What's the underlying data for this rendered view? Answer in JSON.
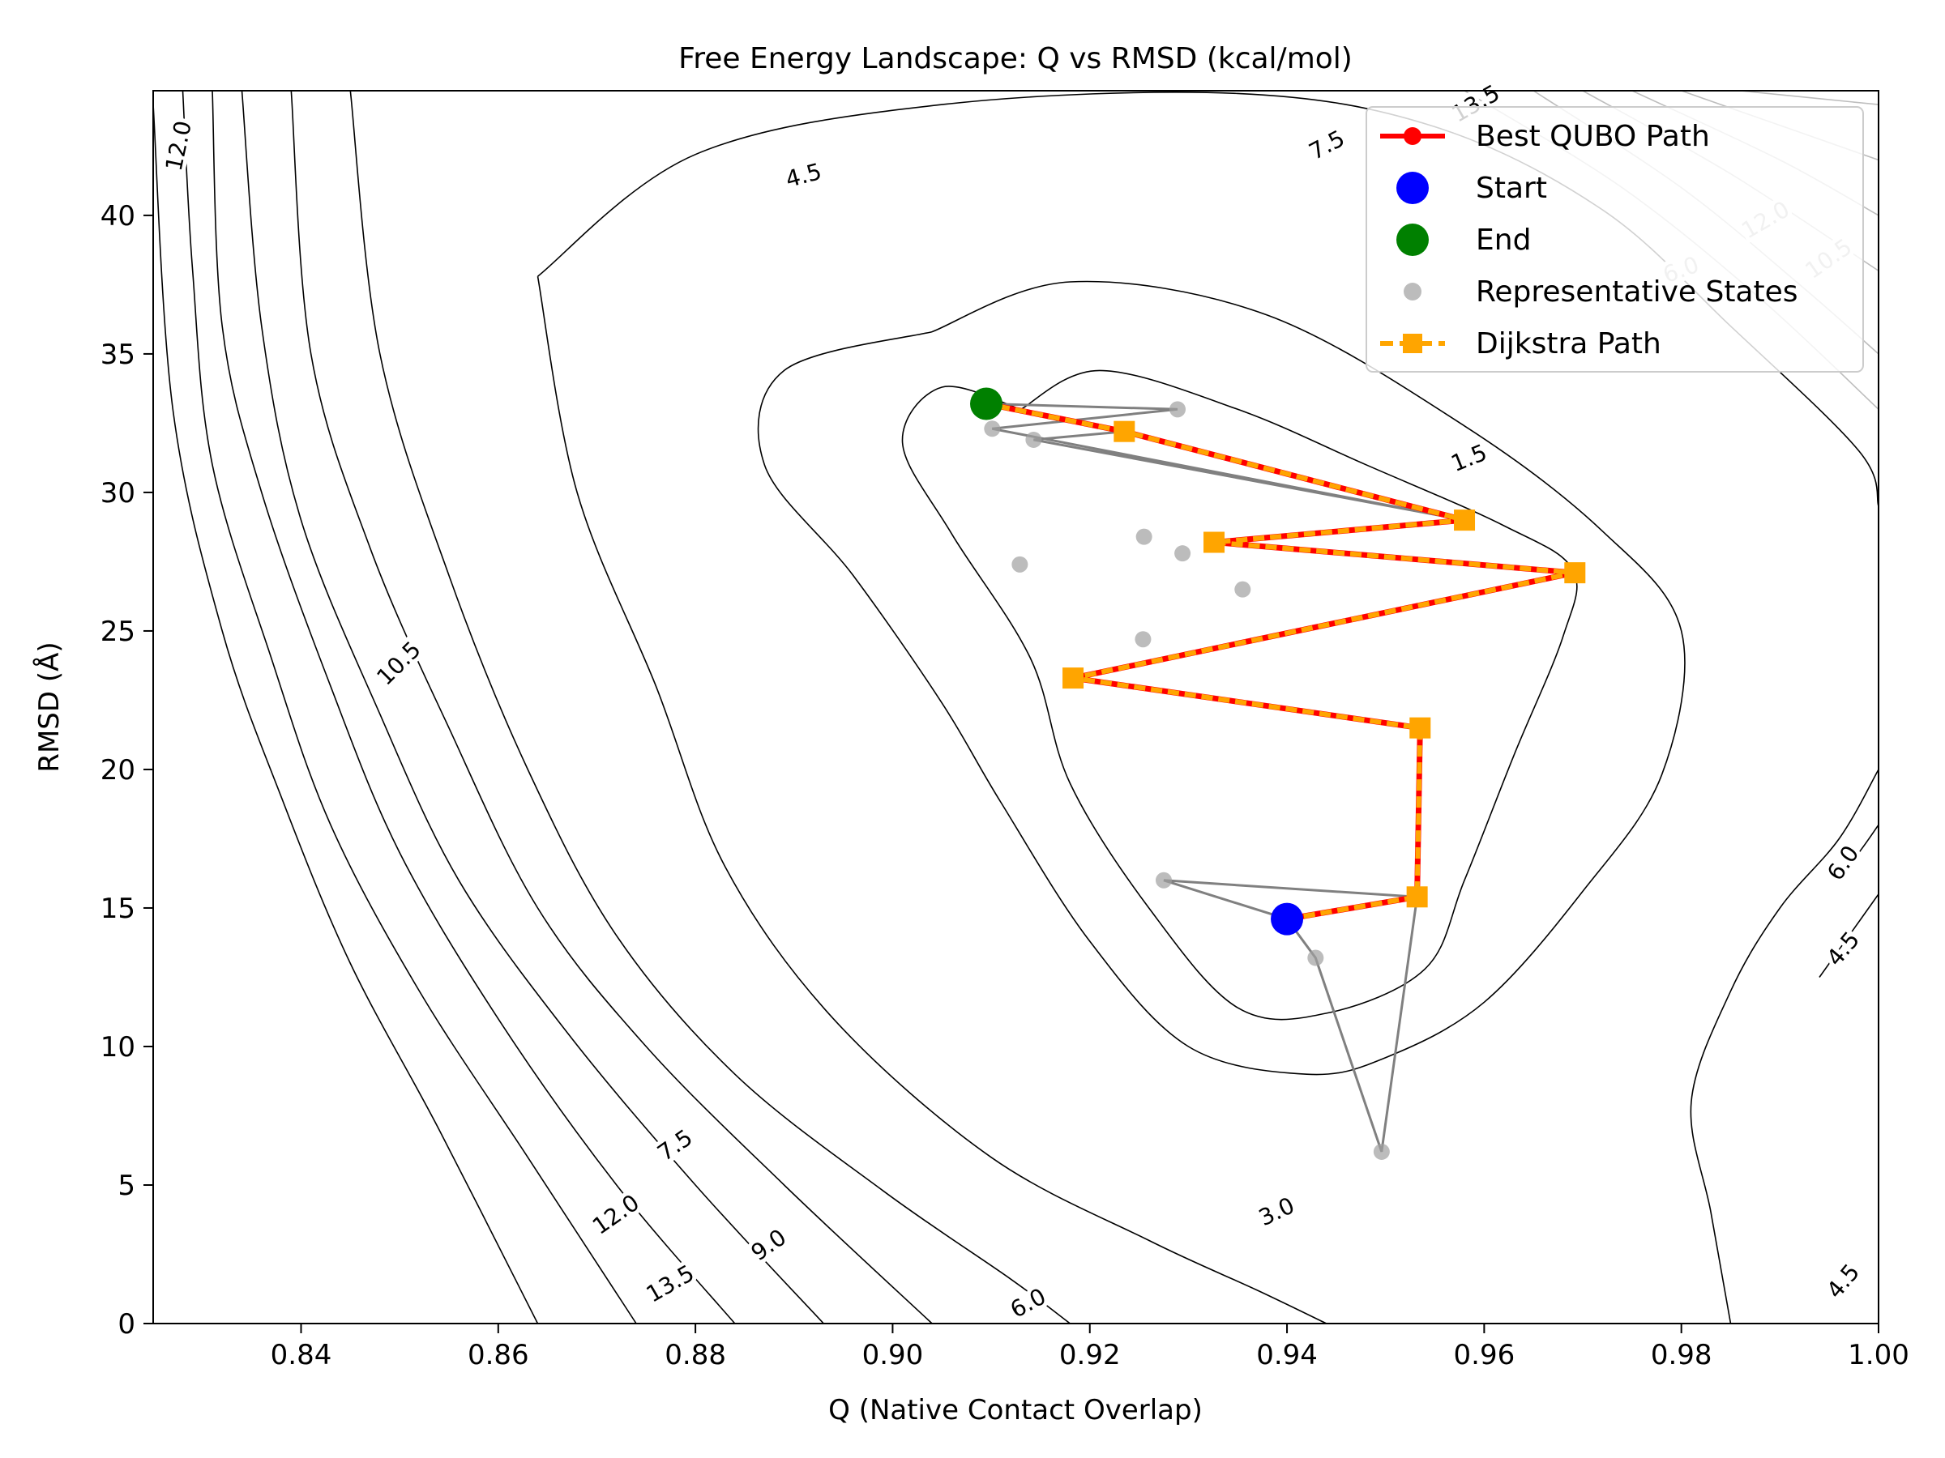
{
  "chart_data": {
    "type": "contour",
    "title": "Free Energy Landscape: Q vs RMSD (kcal/mol)",
    "xlabel": "Q (Native Contact Overlap)",
    "ylabel": "RMSD (Å)",
    "xlim": [
      0.825,
      1.0
    ],
    "ylim": [
      0,
      44.5
    ],
    "xticks": [
      0.84,
      0.86,
      0.88,
      0.9,
      0.92,
      0.94,
      0.96,
      0.98,
      1.0
    ],
    "xtick_labels": [
      "0.84",
      "0.86",
      "0.88",
      "0.90",
      "0.92",
      "0.94",
      "0.96",
      "0.98",
      "1.00"
    ],
    "yticks": [
      0,
      5,
      10,
      15,
      20,
      25,
      30,
      35,
      40
    ],
    "ytick_labels": [
      "0",
      "5",
      "10",
      "15",
      "20",
      "25",
      "30",
      "35",
      "40"
    ],
    "colors": {
      "contour": "#000000",
      "contour_faint": "#bdbdbd",
      "best_path": "#ff0000",
      "dijkstra": "#ffa500",
      "start": "#0000ff",
      "end": "#008000",
      "representative": "#a0a0a0",
      "connections": "#808080"
    },
    "contours": [
      {
        "level": "1.5",
        "faint": false,
        "points": [
          [
            0.913,
            33.0
          ],
          [
            0.921,
            34.4
          ],
          [
            0.935,
            33.0
          ],
          [
            0.948,
            31.0
          ],
          [
            0.962,
            28.8
          ],
          [
            0.969,
            27.2
          ],
          [
            0.968,
            24.8
          ],
          [
            0.963,
            20.5
          ],
          [
            0.958,
            16.0
          ],
          [
            0.954,
            12.8
          ],
          [
            0.944,
            11.2
          ],
          [
            0.935,
            11.4
          ],
          [
            0.926,
            15.0
          ],
          [
            0.918,
            19.5
          ],
          [
            0.914,
            24.0
          ],
          [
            0.906,
            28.5
          ],
          [
            0.901,
            31.8
          ],
          [
            0.905,
            33.8
          ],
          [
            0.913,
            33.0
          ]
        ]
      },
      {
        "level": "3.0",
        "faint": false,
        "points": [
          [
            0.904,
            35.8
          ],
          [
            0.918,
            37.6
          ],
          [
            0.938,
            36.4
          ],
          [
            0.958,
            32.4
          ],
          [
            0.972,
            28.6
          ],
          [
            0.98,
            25.0
          ],
          [
            0.978,
            19.8
          ],
          [
            0.97,
            15.6
          ],
          [
            0.96,
            11.6
          ],
          [
            0.95,
            9.6
          ],
          [
            0.942,
            9.0
          ],
          [
            0.93,
            10.0
          ],
          [
            0.92,
            13.8
          ],
          [
            0.911,
            18.8
          ],
          [
            0.905,
            22.4
          ],
          [
            0.896,
            27.0
          ],
          [
            0.887,
            31.0
          ],
          [
            0.889,
            34.4
          ],
          [
            0.904,
            35.8
          ]
        ]
      },
      {
        "level": "4.5",
        "faint": false,
        "points": [
          [
            0.864,
            37.8
          ],
          [
            0.88,
            42.2
          ],
          [
            0.905,
            44.0
          ],
          [
            0.935,
            44.4
          ],
          [
            0.955,
            43.2
          ],
          [
            0.972,
            40.2
          ],
          [
            0.985,
            36.0
          ],
          [
            0.998,
            31.5
          ],
          [
            1.0,
            29.5
          ]
        ]
      },
      {
        "level": "4.5",
        "faint": false,
        "points": [
          [
            0.864,
            37.8
          ],
          [
            0.868,
            30.0
          ],
          [
            0.876,
            23.0
          ],
          [
            0.883,
            16.5
          ],
          [
            0.894,
            11.0
          ],
          [
            0.91,
            6.0
          ],
          [
            0.926,
            3.0
          ],
          [
            0.937,
            1.2
          ],
          [
            0.944,
            0.0
          ]
        ]
      },
      {
        "level": "6.0",
        "faint": false,
        "points": [
          [
            0.845,
            44.5
          ],
          [
            0.848,
            35.0
          ],
          [
            0.855,
            27.0
          ],
          [
            0.863,
            20.0
          ],
          [
            0.872,
            14.0
          ],
          [
            0.884,
            9.0
          ],
          [
            0.899,
            4.8
          ],
          [
            0.912,
            1.6
          ],
          [
            0.918,
            0.0
          ]
        ]
      },
      {
        "level": "7.5",
        "faint": false,
        "points": [
          [
            0.839,
            44.5
          ],
          [
            0.841,
            35.0
          ],
          [
            0.847,
            28.0
          ],
          [
            0.855,
            21.5
          ],
          [
            0.864,
            15.0
          ],
          [
            0.875,
            10.0
          ],
          [
            0.889,
            5.0
          ],
          [
            0.904,
            0.0
          ]
        ]
      },
      {
        "level": "9.0",
        "faint": false,
        "points": [
          [
            0.834,
            44.5
          ],
          [
            0.836,
            36.0
          ],
          [
            0.84,
            29.0
          ],
          [
            0.848,
            22.0
          ],
          [
            0.856,
            16.0
          ],
          [
            0.867,
            10.5
          ],
          [
            0.88,
            5.0
          ],
          [
            0.893,
            0.0
          ]
        ]
      },
      {
        "level": "10.5",
        "faint": false,
        "points": [
          [
            0.831,
            44.5
          ],
          [
            0.832,
            36.0
          ],
          [
            0.836,
            30.0
          ],
          [
            0.843,
            23.0
          ],
          [
            0.85,
            17.0
          ],
          [
            0.86,
            11.0
          ],
          [
            0.872,
            5.0
          ],
          [
            0.884,
            0.0
          ]
        ]
      },
      {
        "level": "12.0",
        "faint": false,
        "points": [
          [
            0.828,
            44.5
          ],
          [
            0.829,
            38.0
          ],
          [
            0.831,
            31.0
          ],
          [
            0.837,
            24.0
          ],
          [
            0.843,
            18.0
          ],
          [
            0.852,
            12.0
          ],
          [
            0.863,
            6.0
          ],
          [
            0.874,
            0.0
          ]
        ]
      },
      {
        "level": "13.5",
        "faint": false,
        "points": [
          [
            0.825,
            44.0
          ],
          [
            0.827,
            33.0
          ],
          [
            0.832,
            25.0
          ],
          [
            0.838,
            19.0
          ],
          [
            0.845,
            13.0
          ],
          [
            0.854,
            7.0
          ],
          [
            0.864,
            0.0
          ]
        ]
      },
      {
        "level": "3.0",
        "faint": false,
        "points": [
          [
            1.0,
            20.0
          ],
          [
            0.996,
            17.5
          ],
          [
            0.99,
            15.0
          ],
          [
            0.985,
            12.0
          ],
          [
            0.981,
            8.0
          ],
          [
            0.983,
            4.0
          ],
          [
            0.985,
            0.0
          ]
        ]
      },
      {
        "level": "4.5",
        "faint": false,
        "points": [
          [
            1.0,
            15.5
          ],
          [
            0.997,
            14.0
          ],
          [
            0.994,
            12.5
          ]
        ]
      },
      {
        "level": "6.0",
        "faint": false,
        "points": [
          [
            1.0,
            18.0
          ],
          [
            0.998,
            17.0
          ],
          [
            0.996,
            16.2
          ]
        ]
      },
      {
        "level": "7.5",
        "faint": true,
        "points": [
          [
            0.965,
            44.5
          ],
          [
            0.98,
            41.0
          ],
          [
            0.992,
            37.5
          ],
          [
            1.0,
            35.0
          ]
        ]
      },
      {
        "level": "6.0",
        "faint": true,
        "points": [
          [
            0.958,
            44.5
          ],
          [
            0.974,
            41.0
          ],
          [
            0.988,
            37.0
          ],
          [
            1.0,
            33.0
          ]
        ]
      },
      {
        "level": "9.0",
        "faint": true,
        "points": [
          [
            0.97,
            44.5
          ],
          [
            0.985,
            41.5
          ],
          [
            1.0,
            38.0
          ]
        ]
      },
      {
        "level": "10.5",
        "faint": true,
        "points": [
          [
            0.975,
            44.5
          ],
          [
            0.99,
            42.0
          ],
          [
            1.0,
            40.0
          ]
        ]
      },
      {
        "level": "12.0",
        "faint": true,
        "points": [
          [
            0.98,
            44.5
          ],
          [
            0.992,
            43.0
          ],
          [
            1.0,
            42.0
          ]
        ]
      },
      {
        "level": "13.5",
        "faint": true,
        "points": [
          [
            0.986,
            44.5
          ],
          [
            1.0,
            44.0
          ]
        ]
      }
    ],
    "contour_labels": [
      {
        "text": "1.5",
        "x": 0.9585,
        "y": 31.2,
        "rotation": -22,
        "faint": false
      },
      {
        "text": "3.0",
        "x": 0.939,
        "y": 4.0,
        "rotation": -25,
        "faint": false
      },
      {
        "text": "4.5",
        "x": 0.891,
        "y": 41.4,
        "rotation": -15,
        "faint": false
      },
      {
        "text": "7.5",
        "x": 0.9441,
        "y": 42.5,
        "rotation": -28,
        "faint": false
      },
      {
        "text": "13.5",
        "x": 0.9592,
        "y": 44.0,
        "rotation": -30,
        "faint": false
      },
      {
        "text": "12.0",
        "x": 0.8277,
        "y": 42.5,
        "rotation": -78,
        "faint": false
      },
      {
        "text": "10.5",
        "x": 0.85,
        "y": 23.8,
        "rotation": -45,
        "faint": false
      },
      {
        "text": "7.5",
        "x": 0.878,
        "y": 6.4,
        "rotation": -35,
        "faint": false
      },
      {
        "text": "12.0",
        "x": 0.872,
        "y": 3.9,
        "rotation": -35,
        "faint": false
      },
      {
        "text": "9.0",
        "x": 0.8875,
        "y": 2.8,
        "rotation": -35,
        "faint": false
      },
      {
        "text": "13.5",
        "x": 0.8775,
        "y": 1.4,
        "rotation": -30,
        "faint": false
      },
      {
        "text": "6.0",
        "x": 0.9138,
        "y": 0.7,
        "rotation": -28,
        "faint": false
      },
      {
        "text": "6.0",
        "x": 0.9965,
        "y": 16.6,
        "rotation": -55,
        "faint": false
      },
      {
        "text": "4.5",
        "x": 0.9965,
        "y": 13.5,
        "rotation": -50,
        "faint": false
      },
      {
        "text": "4.5",
        "x": 0.9965,
        "y": 1.5,
        "rotation": -50,
        "faint": false
      },
      {
        "text": "12.0",
        "x": 0.9886,
        "y": 39.8,
        "rotation": -30,
        "faint": true
      },
      {
        "text": "6.0",
        "x": 0.98,
        "y": 38.0,
        "rotation": -20,
        "faint": true
      },
      {
        "text": "10.5",
        "x": 0.995,
        "y": 38.4,
        "rotation": -35,
        "faint": true
      }
    ],
    "representative_states": [
      [
        0.9289,
        33.0
      ],
      [
        0.9101,
        32.3
      ],
      [
        0.9143,
        31.9
      ],
      [
        0.9255,
        28.4
      ],
      [
        0.9294,
        27.8
      ],
      [
        0.9129,
        27.4
      ],
      [
        0.9355,
        26.5
      ],
      [
        0.9254,
        24.7
      ],
      [
        0.9275,
        16.0
      ],
      [
        0.9429,
        13.2
      ],
      [
        0.9496,
        6.2
      ],
      [
        0.94,
        14.6
      ],
      [
        0.9532,
        15.4
      ],
      [
        0.9535,
        21.5
      ],
      [
        0.9183,
        23.3
      ],
      [
        0.9692,
        27.1
      ],
      [
        0.9326,
        28.2
      ],
      [
        0.958,
        29.0
      ],
      [
        0.9235,
        32.2
      ],
      [
        0.9095,
        33.2
      ]
    ],
    "connections": [
      [
        [
          0.9095,
          33.2
        ],
        [
          0.9289,
          33.0
        ],
        [
          0.9101,
          32.3
        ],
        [
          0.958,
          29.0
        ],
        [
          0.9143,
          31.9
        ],
        [
          0.9235,
          32.2
        ]
      ],
      [
        [
          0.94,
          14.6
        ],
        [
          0.9275,
          16.0
        ],
        [
          0.9532,
          15.4
        ],
        [
          0.9496,
          6.2
        ],
        [
          0.9429,
          13.2
        ],
        [
          0.94,
          14.6
        ]
      ]
    ],
    "best_path": [
      [
        0.94,
        14.6
      ],
      [
        0.9532,
        15.4
      ],
      [
        0.9535,
        21.5
      ],
      [
        0.9183,
        23.3
      ],
      [
        0.9692,
        27.1
      ],
      [
        0.9326,
        28.2
      ],
      [
        0.958,
        29.0
      ],
      [
        0.9235,
        32.2
      ],
      [
        0.9095,
        33.2
      ]
    ],
    "dijkstra_path": [
      [
        0.94,
        14.6
      ],
      [
        0.9532,
        15.4
      ],
      [
        0.9535,
        21.5
      ],
      [
        0.9183,
        23.3
      ],
      [
        0.9692,
        27.1
      ],
      [
        0.9326,
        28.2
      ],
      [
        0.958,
        29.0
      ],
      [
        0.9235,
        32.2
      ],
      [
        0.9095,
        33.2
      ]
    ],
    "start": [
      0.94,
      14.6
    ],
    "end": [
      0.9095,
      33.2
    ],
    "legend": {
      "position": "top-right",
      "entries": [
        {
          "label": "Best QUBO Path",
          "kind": "line-marker"
        },
        {
          "label": "Start",
          "kind": "start"
        },
        {
          "label": "End",
          "kind": "end"
        },
        {
          "label": "Representative States",
          "kind": "representative"
        },
        {
          "label": "Dijkstra Path",
          "kind": "dijkstra"
        }
      ]
    }
  }
}
